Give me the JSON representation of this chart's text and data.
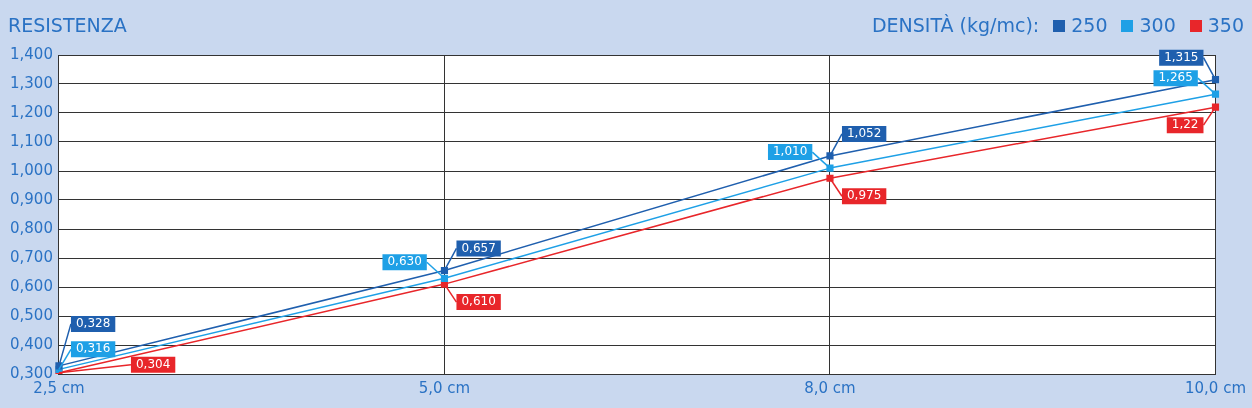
{
  "chart_data": {
    "type": "line",
    "title": "RESISTENZA",
    "legend_title": "DENSITÀ (kg/mc):",
    "legend": "top right",
    "grid": true,
    "marker": "square",
    "line_style": "solid",
    "categories": [
      "2,5 cm",
      "5,0 cm",
      "8,0 cm",
      "10,0 cm"
    ],
    "ylim": [
      0.3,
      1.4
    ],
    "yticks": [
      {
        "value": 0.3,
        "label": "0,300"
      },
      {
        "value": 0.4,
        "label": "0,400"
      },
      {
        "value": 0.5,
        "label": "0,500"
      },
      {
        "value": 0.6,
        "label": "0,600"
      },
      {
        "value": 0.7,
        "label": "0,700"
      },
      {
        "value": 0.8,
        "label": "0,800"
      },
      {
        "value": 0.9,
        "label": "0,900"
      },
      {
        "value": 1.0,
        "label": "1,000"
      },
      {
        "value": 1.1,
        "label": "1,100"
      },
      {
        "value": 1.2,
        "label": "1,200"
      },
      {
        "value": 1.3,
        "label": "1,300"
      },
      {
        "value": 1.4,
        "label": "1,400"
      }
    ],
    "series": [
      {
        "name": "250",
        "color": "#1f5fae",
        "values": [
          0.328,
          0.657,
          1.052,
          1.315
        ],
        "value_labels": [
          "0,328",
          "0,657",
          "1,052",
          "1,315"
        ]
      },
      {
        "name": "300",
        "color": "#1ea0e6",
        "values": [
          0.316,
          0.63,
          1.01,
          1.265
        ],
        "value_labels": [
          "0,316",
          "0,630",
          "1,010",
          "1,265"
        ]
      },
      {
        "name": "350",
        "color": "#e8262a",
        "values": [
          0.304,
          0.61,
          0.975,
          1.22
        ],
        "value_labels": [
          "0,304",
          "0,610",
          "0,975",
          "1,22"
        ]
      }
    ]
  }
}
